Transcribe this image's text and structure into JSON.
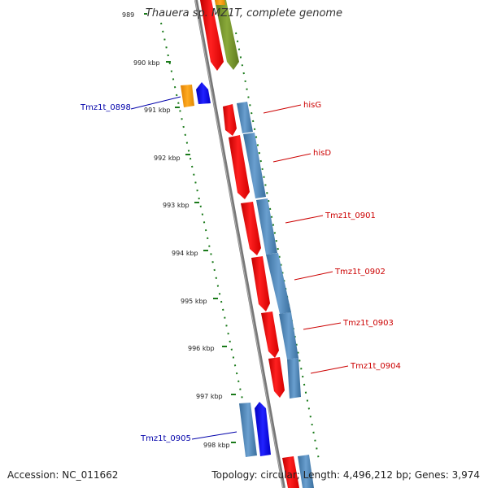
{
  "title": "Thauera sp. MZ1T, complete genome",
  "footer": {
    "accession": "Accession: NC_011662",
    "summary": "Topology: circular; Length: 4,496,212 bp; Genes: 3,974"
  },
  "colors": {
    "forward_gene": "#ff0000",
    "cds_blue": "#4f86b8",
    "blue_gene": "#0000ff",
    "orange_gene": "#ff9900",
    "green_gene": "#77962c",
    "ruler": "#1a7a1a",
    "backbone": "#808080",
    "label_red": "#cc0000",
    "label_blue": "#0000aa"
  },
  "ruler": {
    "ticks": [
      "989",
      "990 kbp",
      "991 kbp",
      "992 kbp",
      "993 kbp",
      "994 kbp",
      "995 kbp",
      "996 kbp",
      "997 kbp",
      "998 kbp"
    ]
  },
  "genes": [
    {
      "name": "hisG",
      "color": "red"
    },
    {
      "name": "hisD",
      "color": "red"
    },
    {
      "name": "Tmz1t_0901",
      "color": "red"
    },
    {
      "name": "Tmz1t_0902",
      "color": "red"
    },
    {
      "name": "Tmz1t_0903",
      "color": "red"
    },
    {
      "name": "Tmz1t_0904",
      "color": "red"
    },
    {
      "name": "Tmz1t_0898",
      "color": "blue"
    },
    {
      "name": "Tmz1t_0905",
      "color": "blue"
    }
  ]
}
